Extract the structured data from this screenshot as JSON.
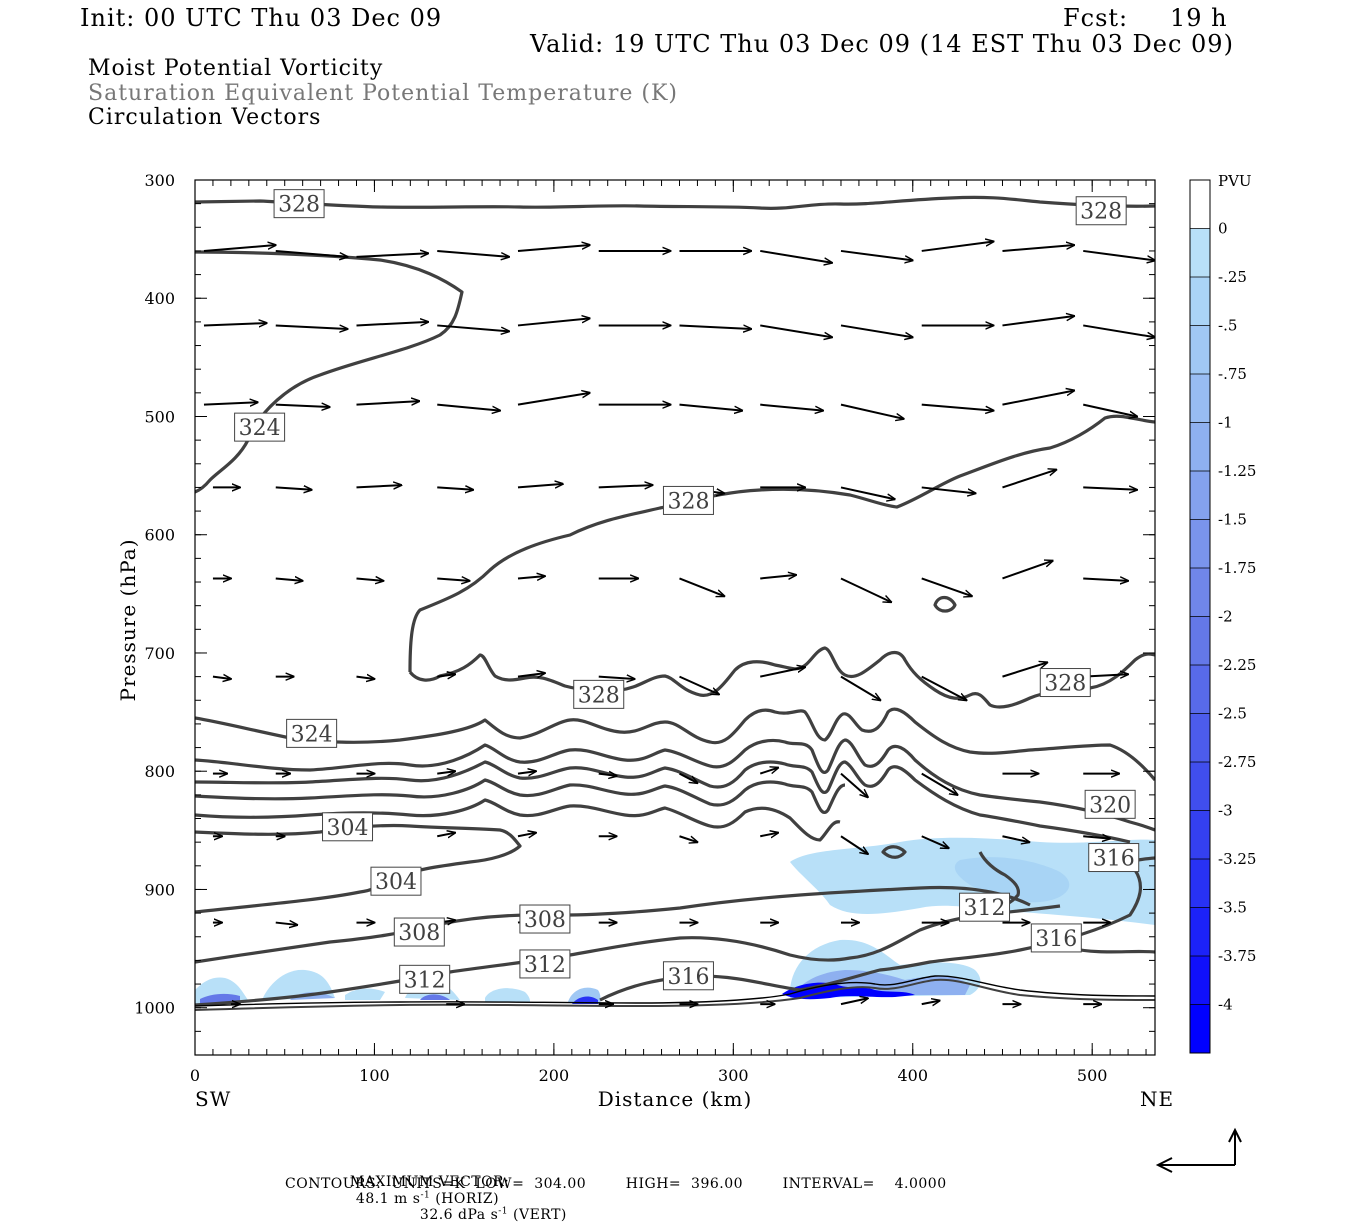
{
  "header": {
    "init": "Init: 00 UTC Thu 03 Dec 09",
    "fcst_label": "Fcst:",
    "fcst_value": "19 h",
    "valid": "Valid: 19 UTC Thu 03 Dec 09 (14 EST Thu 03 Dec 09)"
  },
  "legend_lines": {
    "line1": "Moist Potential Vorticity",
    "line2": "Saturation Equivalent Potential Temperature (K)",
    "line3": "Circulation Vectors"
  },
  "footer": {
    "max_vector_prefix": "MAXIMUM VECTOR:",
    "max_vector_h": "48.1 m s",
    "max_vector_h_sup": "-1",
    "max_vector_h_suffix": "(HORIZ)",
    "max_vector_v": "32.6 dPa s",
    "max_vector_v_sup": "-1",
    "max_vector_v_suffix": "(VERT)",
    "contours": "CONTOURS:  UNITS=K  LOW=  304.00        HIGH=  396.00        INTERVAL=    4.0000"
  },
  "colors": {
    "contour": "#404040",
    "vector": "#000000",
    "pv_light": "#b8e0f8",
    "pv_dark": "#0000ff"
  },
  "chart_data": {
    "type": "cross-section",
    "title": "Moist Potential Vorticity",
    "xlabel": "Distance (km)",
    "ylabel": "Pressure (hPa)",
    "x_endpoints": {
      "left": "SW",
      "right": "NE"
    },
    "xlim": [
      0,
      535
    ],
    "ylim": [
      1040,
      300
    ],
    "x_ticks": [
      0,
      100,
      200,
      300,
      400,
      500
    ],
    "y_ticks": [
      300,
      400,
      500,
      600,
      700,
      800,
      900,
      1000
    ],
    "colorbar": {
      "unit": "PVU",
      "labels": [
        "0",
        "-.25",
        "-.5",
        "-.75",
        "-1",
        "-1.25",
        "-1.5",
        "-1.75",
        "-2",
        "-2.25",
        "-2.5",
        "-2.75",
        "-3",
        "-3.25",
        "-3.5",
        "-3.75",
        "-4"
      ],
      "colors": [
        "#ffffff",
        "#b8e0f8",
        "#aad4f6",
        "#a0c8f4",
        "#98bcf2",
        "#8eb0f0",
        "#84a2ee",
        "#7a94ec",
        "#7086ea",
        "#6478e8",
        "#586aea",
        "#4c5cec",
        "#404eee",
        "#3440f0",
        "#2832f4",
        "#1c22f8",
        "#1010fb",
        "#0000ff"
      ]
    },
    "contour_labels": [
      {
        "text": "328",
        "x": 58,
        "p": 320
      },
      {
        "text": "328",
        "x": 505,
        "p": 326
      },
      {
        "text": "324",
        "x": 36,
        "p": 509
      },
      {
        "text": "328",
        "x": 275,
        "p": 571
      },
      {
        "text": "328",
        "x": 225,
        "p": 735
      },
      {
        "text": "328",
        "x": 485,
        "p": 725
      },
      {
        "text": "324",
        "x": 65,
        "p": 768
      },
      {
        "text": "320",
        "x": 510,
        "p": 828
      },
      {
        "text": "304",
        "x": 85,
        "p": 847
      },
      {
        "text": "316",
        "x": 512,
        "p": 873
      },
      {
        "text": "304",
        "x": 112,
        "p": 893
      },
      {
        "text": "312",
        "x": 440,
        "p": 915
      },
      {
        "text": "308",
        "x": 195,
        "p": 925
      },
      {
        "text": "308",
        "x": 125,
        "p": 936
      },
      {
        "text": "316",
        "x": 480,
        "p": 941
      },
      {
        "text": "312",
        "x": 195,
        "p": 963
      },
      {
        "text": "316",
        "x": 275,
        "p": 973
      },
      {
        "text": "312",
        "x": 128,
        "p": 976
      }
    ]
  }
}
